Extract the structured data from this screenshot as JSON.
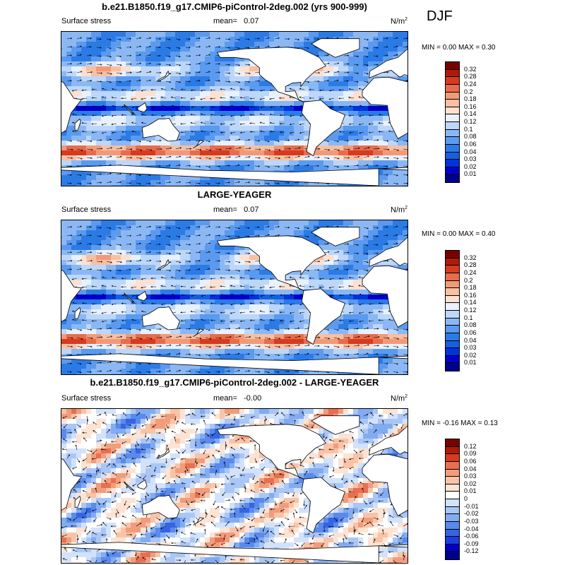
{
  "season": "DJF",
  "panels": [
    {
      "title": "b.e21.B1850.f19_g17.CMIP6-piControl-2deg.002 (yrs 900-999)",
      "left_label": "Surface stress",
      "mean_label": "mean=",
      "mean_value": "0.07",
      "units": "N/m",
      "units_sup": "2",
      "minmax": "MIN =   0.00 MAX =   0.30",
      "colorbar_ticks": [
        "0.32",
        "0.28",
        "0.24",
        "0.2",
        "0.18",
        "0.16",
        "0.14",
        "0.12",
        "0.1",
        "0.08",
        "0.06",
        "0.04",
        "0.03",
        "0.02",
        "0.01"
      ]
    },
    {
      "title": "LARGE-YEAGER",
      "left_label": "Surface stress",
      "mean_label": "mean=",
      "mean_value": "0.07",
      "units": "N/m",
      "units_sup": "2",
      "minmax": "MIN =   0.00 MAX =   0.40",
      "colorbar_ticks": [
        "0.32",
        "0.28",
        "0.24",
        "0.2",
        "0.18",
        "0.16",
        "0.14",
        "0.12",
        "0.1",
        "0.08",
        "0.06",
        "0.04",
        "0.03",
        "0.02",
        "0.01"
      ]
    },
    {
      "title": "b.e21.B1850.f19_g17.CMIP6-piControl-2deg.002 - LARGE-YEAGER",
      "left_label": "Surface stress",
      "mean_label": "mean=",
      "mean_value": "-0.00",
      "units": "N/m",
      "units_sup": "2",
      "minmax": "MIN =  -0.16 MAX =   0.13",
      "colorbar_ticks": [
        "0.12",
        "0.09",
        "0.06",
        "0.04",
        "0.03",
        "0.02",
        "0.01",
        "0",
        "-0.01",
        "-0.02",
        "-0.03",
        "-0.04",
        "-0.06",
        "-0.09",
        "-0.12"
      ]
    }
  ],
  "colors": {
    "abs_palette": [
      "#00008b",
      "#0000cd",
      "#0033dd",
      "#1560e0",
      "#2b7be6",
      "#5a9af0",
      "#8bb8f5",
      "#bcd7fa",
      "#e8f1fc",
      "#fde0d0",
      "#f8bfa3",
      "#f29a78",
      "#e86c4c",
      "#d63a20",
      "#b01a08",
      "#7a0000"
    ],
    "diff_palette": [
      "#00008b",
      "#0000cd",
      "#1a40dd",
      "#3565e3",
      "#5a8aec",
      "#82abf2",
      "#a9c6f6",
      "#d2e2fb",
      "#ffffff",
      "#fde3d3",
      "#f9c3a7",
      "#f29c7b",
      "#e86f50",
      "#d63a20",
      "#b01a08",
      "#7a0000"
    ]
  }
}
